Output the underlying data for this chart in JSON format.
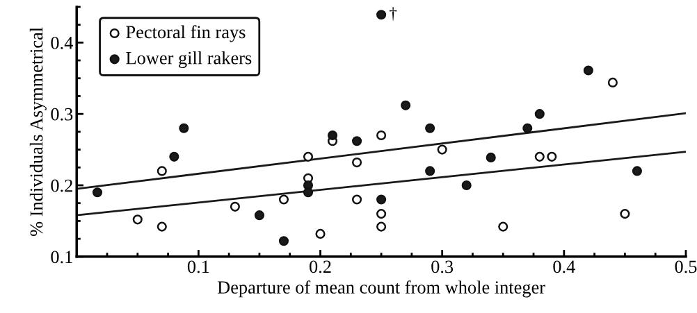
{
  "chart_data": {
    "type": "scatter",
    "xlabel": "Departure of mean count from whole integer",
    "ylabel": "% Individuals Asymmetrical",
    "xlim": [
      0,
      0.5
    ],
    "ylim": [
      0.1,
      0.45
    ],
    "xticks": [
      {
        "value": 0.025,
        "label": null
      },
      {
        "value": 0.05,
        "label": null
      },
      {
        "value": 0.075,
        "label": null
      },
      0.1,
      {
        "value": 0.125,
        "label": null
      },
      {
        "value": 0.15,
        "label": null
      },
      {
        "value": 0.175,
        "label": null
      },
      0.2,
      {
        "value": 0.225,
        "label": null
      },
      {
        "value": 0.25,
        "label": null
      },
      {
        "value": 0.275,
        "label": null
      },
      0.3,
      {
        "value": 0.325,
        "label": null
      },
      {
        "value": 0.35,
        "label": null
      },
      {
        "value": 0.375,
        "label": null
      },
      0.4,
      {
        "value": 0.425,
        "label": null
      },
      {
        "value": 0.45,
        "label": null
      },
      {
        "value": 0.475,
        "label": null
      },
      0.5
    ],
    "yticks": [
      0.1,
      {
        "value": 0.125,
        "label": null
      },
      {
        "value": 0.15,
        "label": null
      },
      {
        "value": 0.175,
        "label": null
      },
      0.2,
      {
        "value": 0.225,
        "label": null
      },
      {
        "value": 0.25,
        "label": null
      },
      {
        "value": 0.275,
        "label": null
      },
      0.3,
      {
        "value": 0.325,
        "label": null
      },
      {
        "value": 0.35,
        "label": null
      },
      {
        "value": 0.375,
        "label": null
      },
      0.4,
      {
        "value": 0.425,
        "label": null
      },
      {
        "value": 0.45,
        "label": null
      }
    ],
    "grid": false,
    "legend": "top left",
    "series": [
      {
        "name": "Pectoral fin rays",
        "color": "#ffffff",
        "marker": "circle",
        "x": [
          0.05,
          0.07,
          0.07,
          0.13,
          0.17,
          0.2,
          0.19,
          0.19,
          0.21,
          0.23,
          0.23,
          0.25,
          0.25,
          0.25,
          0.3,
          0.35,
          0.38,
          0.39,
          0.44,
          0.45
        ],
        "values": [
          0.152,
          0.142,
          0.22,
          0.17,
          0.18,
          0.132,
          0.24,
          0.21,
          0.262,
          0.232,
          0.18,
          0.27,
          0.16,
          0.142,
          0.25,
          0.142,
          0.24,
          0.24,
          0.344,
          0.16
        ]
      },
      {
        "name": "Lower gill rakers",
        "color": "#1a1a1a",
        "marker": "circle",
        "x": [
          0.017,
          0.08,
          0.088,
          0.15,
          0.17,
          0.19,
          0.19,
          0.21,
          0.23,
          0.25,
          0.25,
          0.27,
          0.29,
          0.29,
          0.32,
          0.34,
          0.37,
          0.38,
          0.42,
          0.46
        ],
        "values": [
          0.19,
          0.24,
          0.28,
          0.158,
          0.122,
          0.2,
          0.19,
          0.27,
          0.262,
          0.439,
          0.18,
          0.312,
          0.28,
          0.22,
          0.2,
          0.239,
          0.28,
          0.3,
          0.361,
          0.22
        ]
      },
      {
        "type": "line",
        "color": "#1a1a1a",
        "marker": "none",
        "x": [
          0,
          0.5
        ],
        "values": [
          0.195,
          0.301
        ]
      },
      {
        "type": "line",
        "color": "#1a1a1a",
        "marker": "none",
        "x": [
          0,
          0.5
        ],
        "values": [
          0.158,
          0.247
        ]
      }
    ],
    "annotations": [
      {
        "text": "†",
        "x": 0.25,
        "y": 0.439
      }
    ]
  }
}
